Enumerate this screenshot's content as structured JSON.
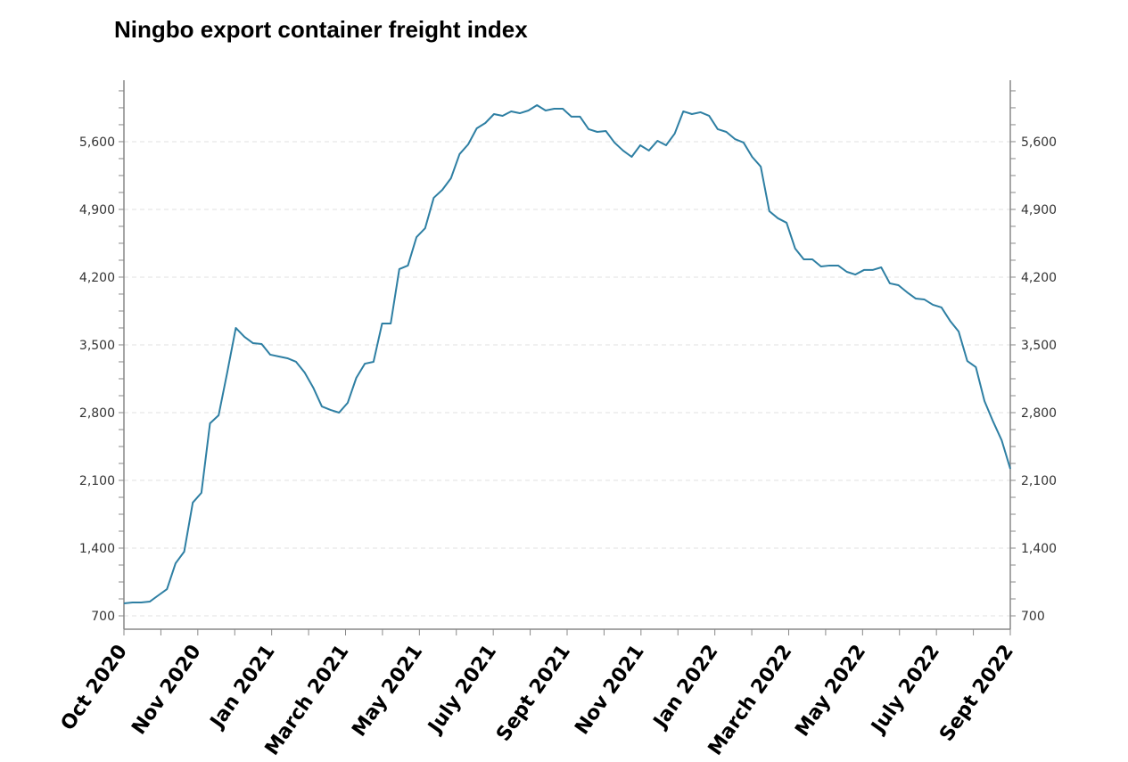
{
  "chart_data": {
    "type": "line",
    "title": "Ningbo export container freight index",
    "xlabel": "",
    "ylabel": "",
    "ylim": [
      562,
      6235
    ],
    "y_ticks": [
      700,
      1400,
      2100,
      2800,
      3500,
      4200,
      4900,
      5600
    ],
    "y_tick_labels": [
      "700",
      "1,400",
      "2,100",
      "2,800",
      "3,500",
      "4,200",
      "4,900",
      "5,600"
    ],
    "y_axis_both_sides": true,
    "x_tick_labels": [
      "Oct 2020",
      "Nov 2020",
      "Jan 2021",
      "March 2021",
      "May 2021",
      "July 2021",
      "Sept 2021",
      "Nov 2021",
      "Jan 2022",
      "March 2022",
      "May 2022",
      "July 2022",
      "Sept 2022"
    ],
    "grid": "horizontal dashed",
    "line_color": "#2e7fa3",
    "series": [
      {
        "values": [
          829,
          838,
          838,
          847,
          912,
          976,
          1243,
          1363,
          1870,
          1971,
          2689,
          2772,
          3214,
          3675,
          3583,
          3518,
          3509,
          3399,
          3380,
          3362,
          3325,
          3214,
          3058,
          2864,
          2828,
          2800,
          2901,
          3159,
          3306,
          3325,
          3721,
          3721,
          4283,
          4320,
          4614,
          4706,
          5020,
          5102,
          5222,
          5471,
          5572,
          5738,
          5793,
          5885,
          5867,
          5913,
          5894,
          5922,
          5977,
          5922,
          5940,
          5940,
          5858,
          5858,
          5729,
          5701,
          5710,
          5591,
          5508,
          5443,
          5563,
          5508,
          5609,
          5563,
          5683,
          5913,
          5885,
          5904,
          5867,
          5729,
          5701,
          5627,
          5591,
          5443,
          5342,
          4881,
          4808,
          4762,
          4495,
          4384,
          4384,
          4310,
          4320,
          4320,
          4255,
          4227,
          4274,
          4274,
          4301,
          4136,
          4117,
          4044,
          3979,
          3970,
          3915,
          3887,
          3749,
          3638,
          3334,
          3270,
          2920,
          2708,
          2514,
          2219
        ]
      }
    ]
  }
}
